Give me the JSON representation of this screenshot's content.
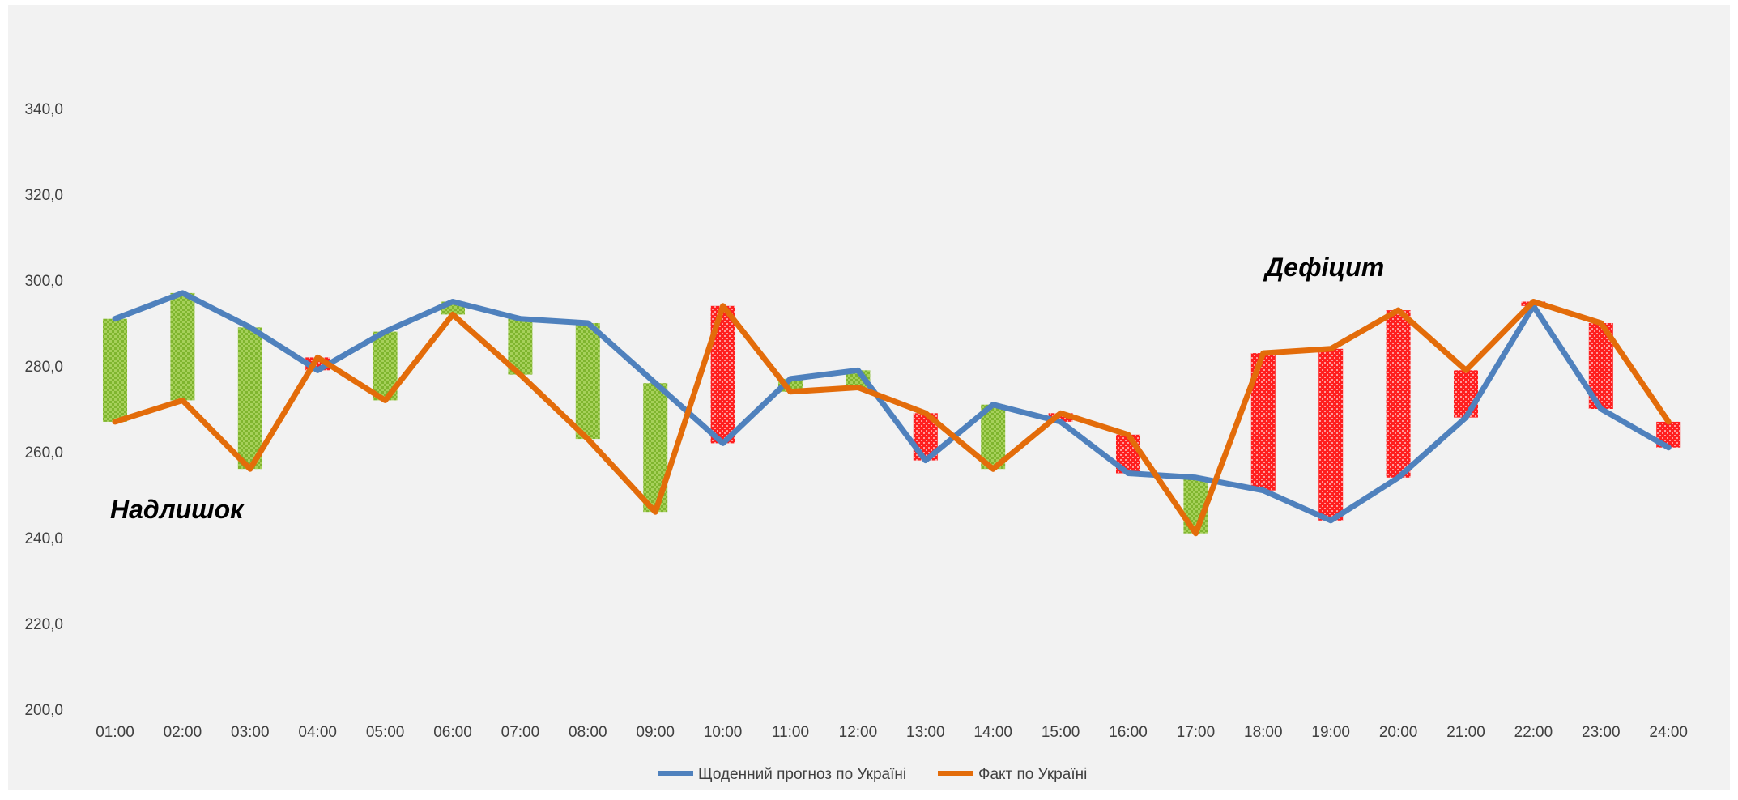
{
  "chart_data": {
    "type": "line",
    "categories": [
      "01:00",
      "02:00",
      "03:00",
      "04:00",
      "05:00",
      "06:00",
      "07:00",
      "08:00",
      "09:00",
      "10:00",
      "11:00",
      "12:00",
      "13:00",
      "14:00",
      "15:00",
      "16:00",
      "17:00",
      "18:00",
      "19:00",
      "20:00",
      "21:00",
      "22:00",
      "23:00",
      "24:00"
    ],
    "series": [
      {
        "name": "Щоденний прогноз по Україні",
        "color": "#4f81bd",
        "values": [
          291,
          297,
          289,
          279,
          288,
          295,
          291,
          290,
          276,
          262,
          277,
          279,
          258,
          271,
          267,
          255,
          254,
          251,
          244,
          254,
          268,
          294,
          270,
          261
        ]
      },
      {
        "name": "Факт по Україні",
        "color": "#e36c0a",
        "values": [
          267,
          272,
          256,
          282,
          272,
          292,
          278,
          263,
          246,
          294,
          274,
          275,
          269,
          256,
          269,
          264,
          241,
          283,
          284,
          293,
          279,
          295,
          290,
          267
        ]
      }
    ],
    "surplus_color": "#8ec43a",
    "deficit_color": "#ff1a1a",
    "ylim": [
      200,
      360
    ],
    "yticks": [
      200,
      220,
      240,
      260,
      280,
      300,
      320,
      340
    ],
    "ytick_labels": [
      "200,0",
      "220,0",
      "240,0",
      "260,0",
      "280,0",
      "300,0",
      "320,0",
      "340,0"
    ],
    "annotations": {
      "surplus": "Надлишок",
      "deficit": "Дефіцит"
    },
    "grid": false,
    "legend_position": "bottom"
  }
}
